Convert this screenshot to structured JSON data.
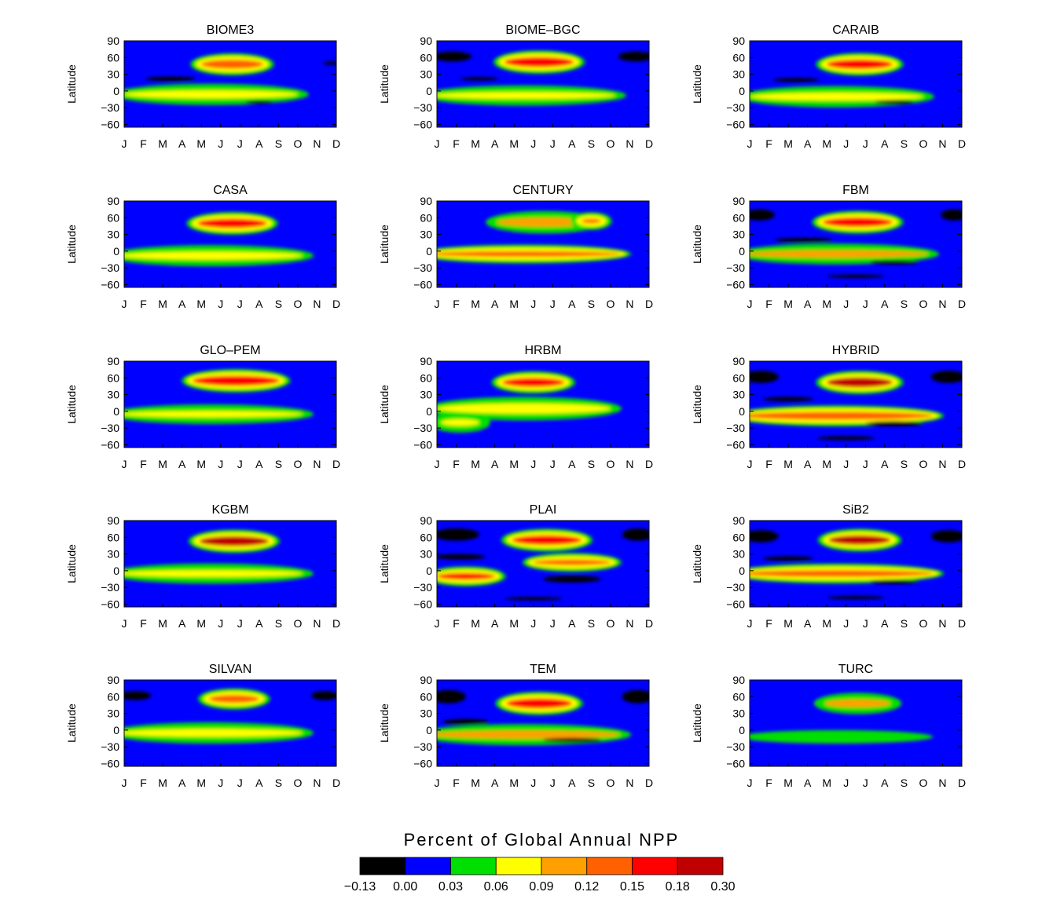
{
  "chart_data": {
    "type": "heatmap",
    "y_ticks": [
      90,
      60,
      30,
      0,
      -30,
      -60
    ],
    "y_tick_labels": [
      "90",
      "60",
      "30",
      "0",
      "−30",
      "−60"
    ],
    "ylabel": "Latitude",
    "x_tick_labels": [
      "J",
      "F",
      "M",
      "A",
      "M",
      "J",
      "J",
      "A",
      "S",
      "O",
      "N",
      "D"
    ],
    "ylim": [
      -65,
      90
    ],
    "xlim": [
      1,
      12
    ],
    "panels": [
      {
        "title": "BIOME3",
        "features": [
          {
            "x": 6.6,
            "y": 48,
            "w": 3.2,
            "h": 16,
            "c": 5
          },
          {
            "x": 3.4,
            "y": 22,
            "w": 2.6,
            "h": 8,
            "c": 0
          },
          {
            "x": 11.8,
            "y": 50,
            "w": 1.0,
            "h": 6,
            "c": 0
          },
          {
            "x": 5.5,
            "y": -6,
            "w": 9.0,
            "h": 14,
            "c": 3
          },
          {
            "x": 8.0,
            "y": -20,
            "w": 1.4,
            "h": 5,
            "c": 0
          }
        ]
      },
      {
        "title": "BIOME–BGC",
        "features": [
          {
            "x": 1.8,
            "y": 62,
            "w": 2.0,
            "h": 18,
            "c": 0
          },
          {
            "x": 11.3,
            "y": 62,
            "w": 1.8,
            "h": 18,
            "c": 0
          },
          {
            "x": 6.3,
            "y": 52,
            "w": 3.6,
            "h": 18,
            "c": 6
          },
          {
            "x": 3.2,
            "y": 22,
            "w": 2.0,
            "h": 6,
            "c": 0
          },
          {
            "x": 5.5,
            "y": -8,
            "w": 9.5,
            "h": 12,
            "c": 3
          }
        ]
      },
      {
        "title": "CARAIB",
        "features": [
          {
            "x": 6.7,
            "y": 48,
            "w": 3.4,
            "h": 17,
            "c": 6
          },
          {
            "x": 3.4,
            "y": 20,
            "w": 2.4,
            "h": 7,
            "c": 0
          },
          {
            "x": 5.5,
            "y": -10,
            "w": 9.0,
            "h": 14,
            "c": 3
          },
          {
            "x": 8.5,
            "y": -20,
            "w": 2.0,
            "h": 7,
            "c": 0
          }
        ]
      },
      {
        "title": "CASA",
        "features": [
          {
            "x": 6.6,
            "y": 50,
            "w": 3.6,
            "h": 17,
            "c": 6
          },
          {
            "x": 5.5,
            "y": -8,
            "w": 9.5,
            "h": 14,
            "c": 3
          }
        ]
      },
      {
        "title": "CENTURY",
        "features": [
          {
            "x": 6.6,
            "y": 52,
            "w": 5.0,
            "h": 16,
            "c": 4
          },
          {
            "x": 9.0,
            "y": 54,
            "w": 1.0,
            "h": 8,
            "c": 5
          },
          {
            "x": 5.5,
            "y": -5,
            "w": 10.0,
            "h": 10,
            "c": 5
          }
        ]
      },
      {
        "title": "FBM",
        "features": [
          {
            "x": 1.5,
            "y": 65,
            "w": 1.6,
            "h": 20,
            "c": 0
          },
          {
            "x": 11.6,
            "y": 65,
            "w": 1.4,
            "h": 20,
            "c": 0
          },
          {
            "x": 6.6,
            "y": 52,
            "w": 3.6,
            "h": 17,
            "c": 6
          },
          {
            "x": 3.8,
            "y": 20,
            "w": 3.0,
            "h": 8,
            "c": 0
          },
          {
            "x": 5.5,
            "y": -5,
            "w": 9.5,
            "h": 13,
            "c": 4
          },
          {
            "x": 8.5,
            "y": -20,
            "w": 2.5,
            "h": 7,
            "c": 0
          },
          {
            "x": 6.5,
            "y": -45,
            "w": 3.0,
            "h": 6,
            "c": 0
          }
        ]
      },
      {
        "title": "GLO–PEM",
        "features": [
          {
            "x": 6.8,
            "y": 55,
            "w": 4.5,
            "h": 18,
            "c": 6
          },
          {
            "x": 5.5,
            "y": -5,
            "w": 9.5,
            "h": 11,
            "c": 3
          }
        ]
      },
      {
        "title": "HRBM",
        "features": [
          {
            "x": 6.0,
            "y": 52,
            "w": 3.2,
            "h": 16,
            "c": 6
          },
          {
            "x": 5.5,
            "y": 5,
            "w": 9.0,
            "h": 18,
            "c": 3
          },
          {
            "x": 2.2,
            "y": -20,
            "w": 2.0,
            "h": 12,
            "c": 3
          }
        ]
      },
      {
        "title": "HYBRID",
        "features": [
          {
            "x": 1.6,
            "y": 62,
            "w": 1.8,
            "h": 22,
            "c": 0
          },
          {
            "x": 11.3,
            "y": 62,
            "w": 1.8,
            "h": 22,
            "c": 0
          },
          {
            "x": 6.7,
            "y": 52,
            "w": 3.4,
            "h": 18,
            "c": 7
          },
          {
            "x": 3.0,
            "y": 22,
            "w": 2.6,
            "h": 8,
            "c": 0
          },
          {
            "x": 5.5,
            "y": -8,
            "w": 10.0,
            "h": 14,
            "c": 5
          },
          {
            "x": 8.5,
            "y": -22,
            "w": 3.0,
            "h": 9,
            "c": 0
          },
          {
            "x": 6.0,
            "y": -48,
            "w": 3.0,
            "h": 7,
            "c": 0
          }
        ]
      },
      {
        "title": "KGBM",
        "features": [
          {
            "x": 6.7,
            "y": 53,
            "w": 3.6,
            "h": 18,
            "c": 7
          },
          {
            "x": 5.5,
            "y": -5,
            "w": 9.5,
            "h": 12,
            "c": 3
          }
        ]
      },
      {
        "title": "PLAI",
        "features": [
          {
            "x": 2.0,
            "y": 65,
            "w": 2.4,
            "h": 22,
            "c": 0
          },
          {
            "x": 11.4,
            "y": 65,
            "w": 1.6,
            "h": 22,
            "c": 0
          },
          {
            "x": 6.7,
            "y": 55,
            "w": 3.6,
            "h": 17,
            "c": 6
          },
          {
            "x": 2.2,
            "y": 25,
            "w": 2.6,
            "h": 10,
            "c": 0
          },
          {
            "x": 8.0,
            "y": 15,
            "w": 4.0,
            "h": 10,
            "c": 5
          },
          {
            "x": 2.5,
            "y": -10,
            "w": 3.0,
            "h": 12,
            "c": 6
          },
          {
            "x": 8.0,
            "y": -15,
            "w": 3.0,
            "h": 12,
            "c": 0
          },
          {
            "x": 6.0,
            "y": -50,
            "w": 3.0,
            "h": 6,
            "c": 0
          }
        ]
      },
      {
        "title": "SiB2",
        "features": [
          {
            "x": 1.6,
            "y": 62,
            "w": 1.8,
            "h": 22,
            "c": 0
          },
          {
            "x": 11.3,
            "y": 62,
            "w": 1.8,
            "h": 22,
            "c": 0
          },
          {
            "x": 6.7,
            "y": 55,
            "w": 3.2,
            "h": 17,
            "c": 7
          },
          {
            "x": 3.0,
            "y": 22,
            "w": 2.6,
            "h": 8,
            "c": 0
          },
          {
            "x": 5.5,
            "y": -5,
            "w": 10.0,
            "h": 12,
            "c": 5
          },
          {
            "x": 8.5,
            "y": -20,
            "w": 2.5,
            "h": 7,
            "c": 0
          },
          {
            "x": 6.5,
            "y": -48,
            "w": 3.0,
            "h": 6,
            "c": 0
          }
        ]
      },
      {
        "title": "SILVAN",
        "features": [
          {
            "x": 1.6,
            "y": 62,
            "w": 1.6,
            "h": 16,
            "c": 0
          },
          {
            "x": 11.4,
            "y": 62,
            "w": 1.4,
            "h": 16,
            "c": 0
          },
          {
            "x": 6.7,
            "y": 56,
            "w": 2.6,
            "h": 14,
            "c": 5
          },
          {
            "x": 5.5,
            "y": -5,
            "w": 9.5,
            "h": 14,
            "c": 3
          }
        ]
      },
      {
        "title": "TEM",
        "features": [
          {
            "x": 1.6,
            "y": 60,
            "w": 1.8,
            "h": 24,
            "c": 0
          },
          {
            "x": 11.4,
            "y": 60,
            "w": 1.6,
            "h": 24,
            "c": 0
          },
          {
            "x": 6.3,
            "y": 48,
            "w": 3.4,
            "h": 18,
            "c": 6
          },
          {
            "x": 2.5,
            "y": 15,
            "w": 2.4,
            "h": 10,
            "c": 0
          },
          {
            "x": 5.5,
            "y": -8,
            "w": 10.0,
            "h": 14,
            "c": 4
          },
          {
            "x": 8.0,
            "y": -18,
            "w": 3.0,
            "h": 8,
            "c": 0
          }
        ]
      },
      {
        "title": "TURC",
        "features": [
          {
            "x": 6.6,
            "y": 48,
            "w": 3.4,
            "h": 14,
            "c": 4
          },
          {
            "x": 5.5,
            "y": -12,
            "w": 10.0,
            "h": 24,
            "c": 2
          }
        ]
      }
    ],
    "colorbar": {
      "title": "Percent of Global Annual NPP",
      "tick_labels": [
        "−0.13",
        "0.00",
        "0.03",
        "0.06",
        "0.09",
        "0.12",
        "0.15",
        "0.18",
        "0.30"
      ],
      "colors": [
        "#000000",
        "#0000ff",
        "#00e000",
        "#ffff00",
        "#ffa000",
        "#ff6000",
        "#ff0000",
        "#c00000"
      ]
    }
  }
}
